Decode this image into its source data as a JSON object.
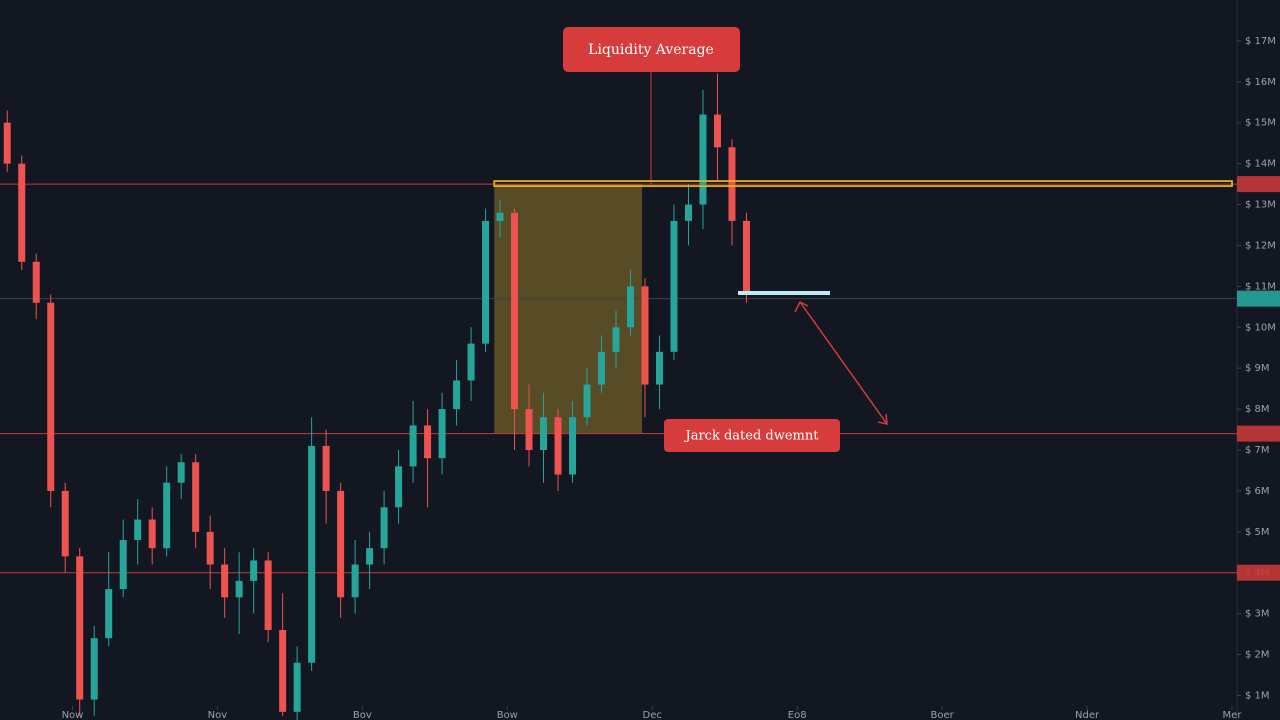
{
  "chart_data": {
    "type": "candlestick",
    "annotations": [
      "Liquidity Average",
      "Jarck dated dwemnt"
    ],
    "x": [
      0.5,
      1.5,
      2.5,
      3.5,
      4.5,
      5.5,
      6.5,
      7.5,
      8.5,
      9.5,
      10.5,
      11.5,
      12.5,
      13.5,
      14.5,
      15.5,
      16.5,
      17.5,
      18.5,
      19.5,
      20.5,
      21.5,
      22.5,
      23.5,
      24.5,
      25.5,
      26.5,
      27.5,
      28.5,
      29.5,
      30.5,
      31.5,
      32.5,
      33.5,
      34.5,
      35.5,
      36.5,
      37.5,
      38.5,
      39.5,
      40.5,
      41.5,
      42.5,
      43.5,
      44.5,
      45.5,
      46.5,
      47.5,
      48.5,
      49.5,
      50.5,
      51.5
    ],
    "open": [
      15.0,
      14.0,
      11.6,
      10.6,
      6.0,
      4.4,
      0.9,
      2.4,
      3.6,
      4.8,
      5.3,
      4.6,
      6.2,
      6.7,
      5.0,
      4.2,
      3.4,
      3.8,
      4.3,
      2.6,
      0.6,
      1.8,
      7.1,
      6.0,
      3.4,
      4.2,
      4.6,
      5.6,
      6.6,
      7.6,
      6.8,
      8.0,
      8.7,
      9.6,
      12.6,
      12.8,
      8.0,
      7.0,
      7.8,
      6.4,
      7.8,
      8.6,
      9.4,
      10.0,
      11.0,
      8.6,
      9.4,
      12.6,
      13.0,
      15.2,
      14.4,
      12.6
    ],
    "high": [
      15.3,
      14.2,
      11.8,
      10.8,
      6.2,
      4.6,
      2.7,
      4.5,
      5.3,
      5.8,
      5.6,
      6.6,
      6.9,
      6.9,
      5.4,
      4.6,
      4.5,
      4.6,
      4.5,
      3.5,
      2.2,
      7.8,
      7.5,
      6.2,
      4.8,
      5.0,
      6.0,
      7.0,
      8.2,
      8.0,
      8.4,
      9.2,
      10.0,
      12.9,
      13.1,
      12.9,
      8.6,
      8.4,
      8.0,
      8.2,
      9.0,
      9.8,
      10.4,
      11.4,
      11.2,
      9.8,
      13.0,
      13.5,
      15.8,
      16.2,
      14.6,
      12.8
    ],
    "low": [
      13.8,
      11.4,
      10.2,
      5.6,
      4.0,
      0.5,
      0.5,
      2.2,
      3.4,
      4.2,
      4.2,
      4.4,
      5.8,
      4.6,
      3.6,
      2.9,
      2.5,
      3.0,
      2.3,
      0.5,
      0.4,
      1.6,
      5.2,
      2.9,
      3.0,
      3.6,
      4.2,
      5.2,
      6.2,
      5.6,
      6.4,
      7.6,
      8.2,
      9.4,
      12.2,
      7.0,
      6.6,
      6.2,
      6.0,
      6.2,
      7.6,
      8.4,
      9.0,
      9.8,
      7.8,
      8.0,
      9.2,
      12.0,
      12.4,
      13.6,
      12.0,
      10.6
    ],
    "close": [
      14.0,
      11.6,
      10.6,
      6.0,
      4.4,
      0.9,
      2.4,
      3.6,
      4.8,
      5.3,
      4.6,
      6.2,
      6.7,
      5.0,
      4.2,
      3.4,
      3.8,
      4.3,
      2.6,
      0.6,
      1.8,
      7.1,
      6.0,
      3.4,
      4.2,
      4.6,
      5.6,
      6.6,
      7.6,
      6.8,
      8.0,
      8.7,
      9.6,
      12.6,
      12.8,
      8.0,
      7.0,
      7.8,
      6.4,
      7.8,
      8.6,
      9.4,
      10.0,
      11.0,
      8.6,
      9.4,
      12.6,
      13.0,
      15.2,
      14.4,
      12.6,
      10.8
    ],
    "up_color": "#26a69a",
    "down_color": "#ef5350",
    "xlim": [
      0,
      85
    ],
    "xticks": [
      {
        "value": 5,
        "label": "Now"
      },
      {
        "value": 15,
        "label": "Nov"
      },
      {
        "value": 25,
        "label": "Bov"
      },
      {
        "value": 35,
        "label": "Bow"
      },
      {
        "value": 45,
        "label": "Dec"
      },
      {
        "value": 55,
        "label": "Eo8"
      },
      {
        "value": 65,
        "label": "Boer"
      },
      {
        "value": 75,
        "label": "Nder"
      },
      {
        "value": 85,
        "label": "Mer"
      }
    ],
    "ylim": [
      0.4,
      18
    ],
    "yticks": [
      {
        "value": 17,
        "label": "$ 17M"
      },
      {
        "value": 16,
        "label": "$ 16M"
      },
      {
        "value": 15,
        "label": "$ 15M"
      },
      {
        "value": 14,
        "label": "$ 14M"
      },
      {
        "value": 13,
        "label": "$ 13M"
      },
      {
        "value": 12,
        "label": "$ 12M"
      },
      {
        "value": 11,
        "label": "$ 11M"
      },
      {
        "value": 10,
        "label": "$ 10M"
      },
      {
        "value": 9,
        "label": "$ 9M"
      },
      {
        "value": 8,
        "label": "$ 8M"
      },
      {
        "value": 7,
        "label": "$ 7M"
      },
      {
        "value": 6,
        "label": "$ 6M"
      },
      {
        "value": 5,
        "label": "$ 5M"
      },
      {
        "value": 4,
        "label": "$ 4M"
      },
      {
        "value": 3,
        "label": "$ 3M"
      },
      {
        "value": 2,
        "label": "$ 2M"
      },
      {
        "value": 1,
        "label": "$ 1M"
      }
    ],
    "levels": [
      {
        "value": 13.5,
        "color": "#c8383a"
      },
      {
        "value": 10.7,
        "color": "#3a404c",
        "tag": "#26a69a"
      },
      {
        "value": 7.4,
        "color": "#c8383a"
      },
      {
        "value": 4.0,
        "color": "#c8383a"
      }
    ],
    "zone": {
      "x": [
        34.1,
        44.3
      ],
      "y": [
        7.4,
        13.5
      ],
      "color": "#b8962e"
    }
  }
}
